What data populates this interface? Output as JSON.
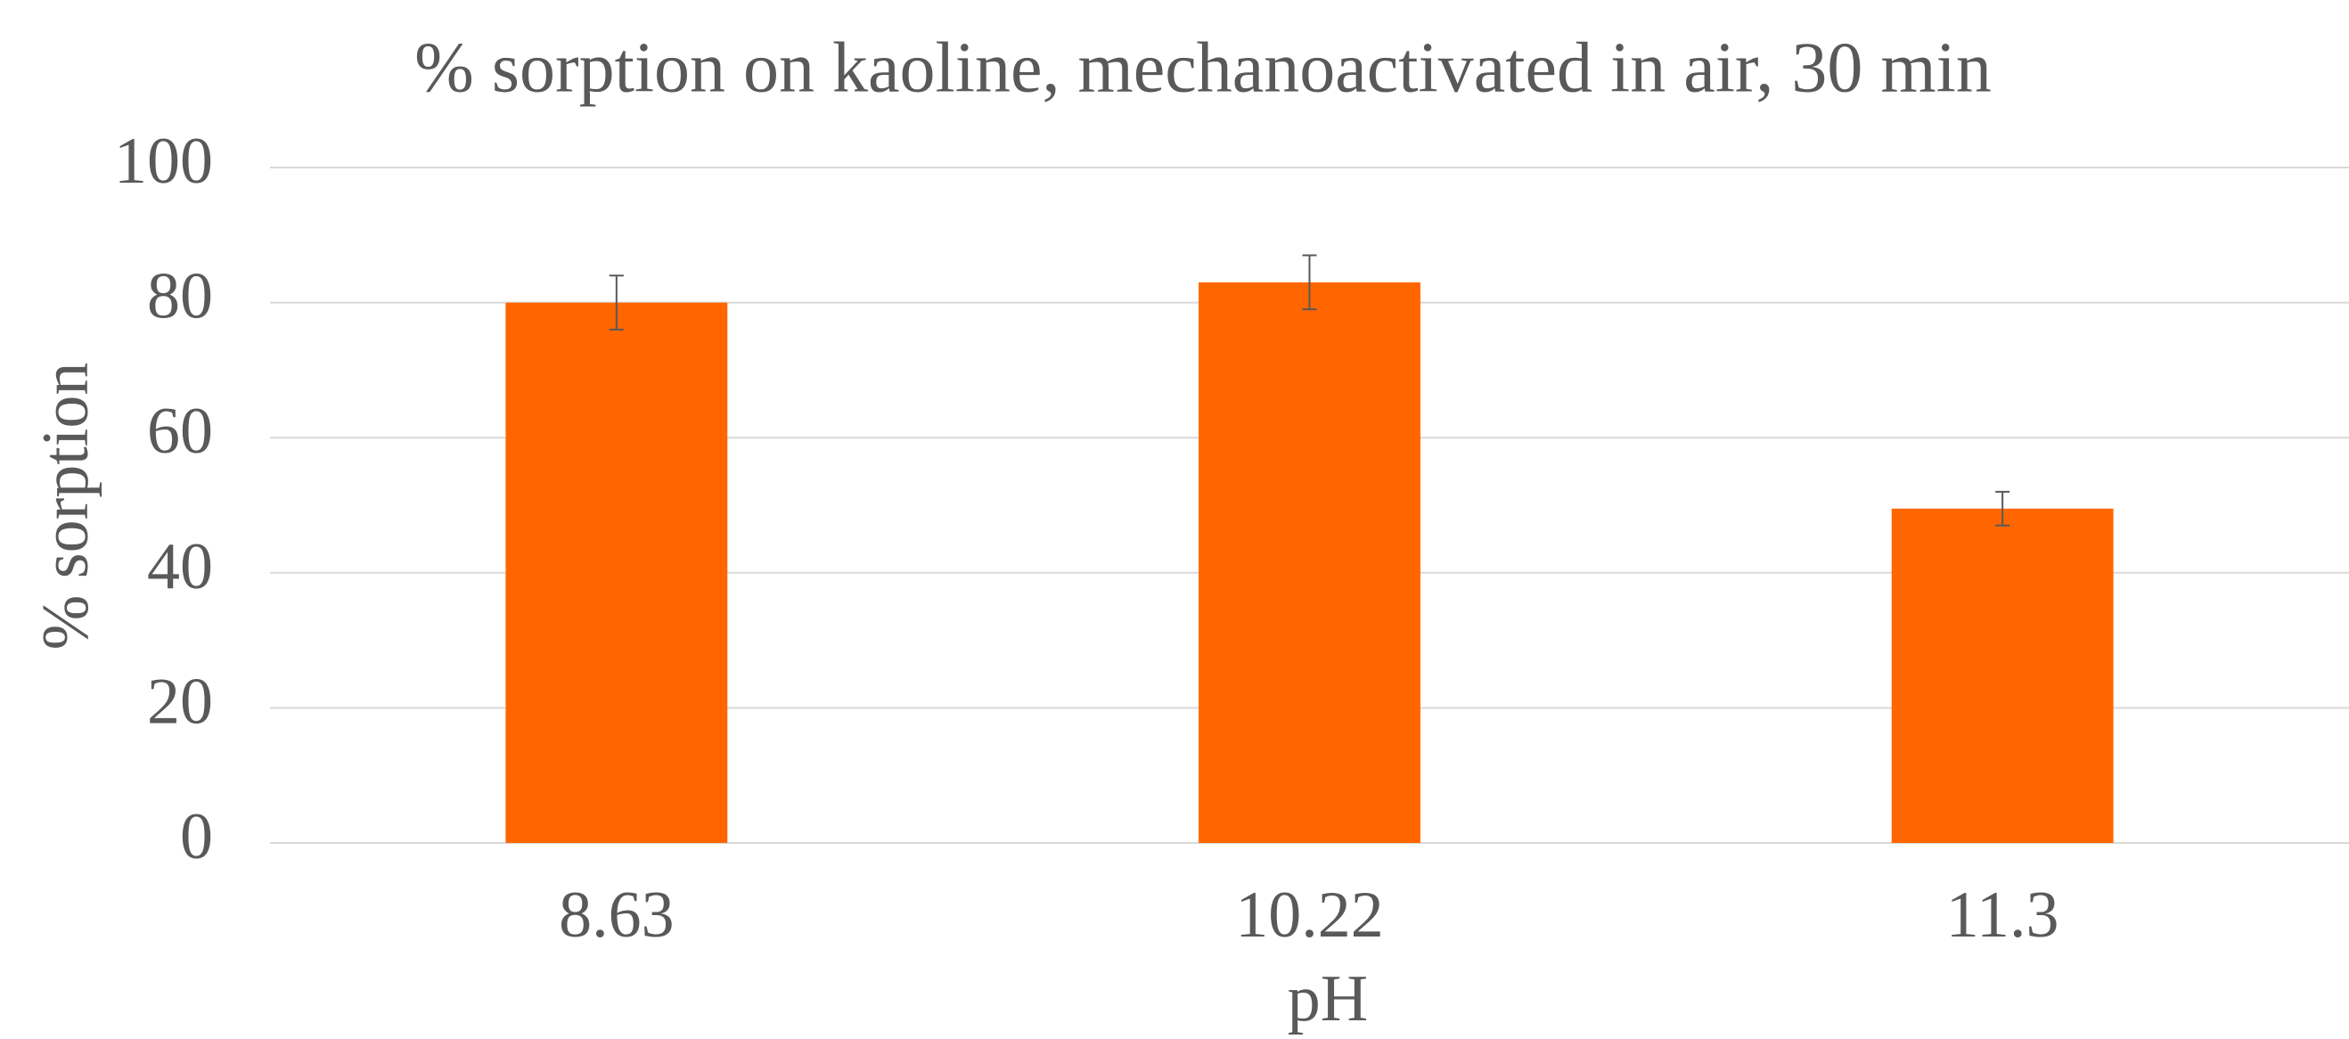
{
  "chart_data": {
    "type": "bar",
    "title": "% sorption on kaoline, mechanoactivated in air, 30 min",
    "x_label": "pH",
    "y_label": "% sorption",
    "categories": [
      "8.63",
      "10.22",
      "11.3"
    ],
    "values": [
      80,
      83,
      49.5
    ],
    "errors": [
      4,
      4,
      2.5
    ],
    "color": "#ff6600",
    "error_color": "#595959",
    "ylim": [
      0,
      100
    ],
    "yticks": [
      0,
      20,
      40,
      60,
      80,
      100
    ],
    "grid": true
  }
}
